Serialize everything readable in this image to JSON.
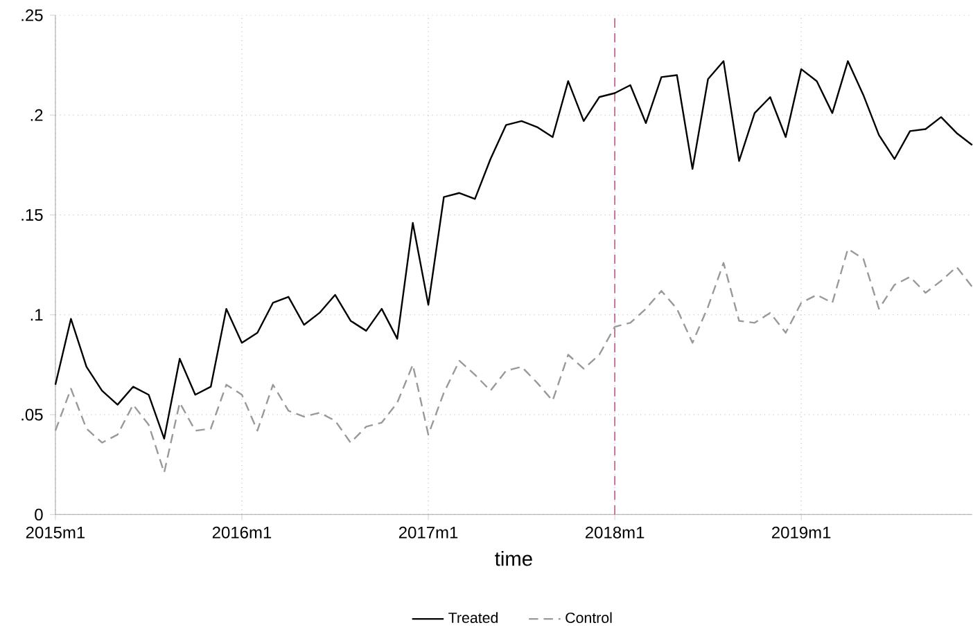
{
  "chart_data": {
    "type": "line",
    "xlabel": "time",
    "x": [
      "2015-01",
      "2015-02",
      "2015-03",
      "2015-04",
      "2015-05",
      "2015-06",
      "2015-07",
      "2015-08",
      "2015-09",
      "2015-10",
      "2015-11",
      "2015-12",
      "2016-01",
      "2016-02",
      "2016-03",
      "2016-04",
      "2016-05",
      "2016-06",
      "2016-07",
      "2016-08",
      "2016-09",
      "2016-10",
      "2016-11",
      "2016-12",
      "2017-01",
      "2017-02",
      "2017-03",
      "2017-04",
      "2017-05",
      "2017-06",
      "2017-07",
      "2017-08",
      "2017-09",
      "2017-10",
      "2017-11",
      "2017-12",
      "2018-01",
      "2018-02",
      "2018-03",
      "2018-04",
      "2018-05",
      "2018-06",
      "2018-07",
      "2018-08",
      "2018-09",
      "2018-10",
      "2018-11",
      "2018-12",
      "2019-01",
      "2019-02",
      "2019-03",
      "2019-04",
      "2019-05",
      "2019-06",
      "2019-07",
      "2019-08",
      "2019-09",
      "2019-10",
      "2019-11",
      "2019-12"
    ],
    "series": [
      {
        "name": "Treated",
        "color": "#000000",
        "line_style": "solid",
        "values": [
          0.065,
          0.098,
          0.074,
          0.062,
          0.055,
          0.064,
          0.06,
          0.038,
          0.078,
          0.06,
          0.064,
          0.103,
          0.086,
          0.091,
          0.106,
          0.109,
          0.095,
          0.101,
          0.11,
          0.097,
          0.092,
          0.103,
          0.088,
          0.146,
          0.105,
          0.159,
          0.161,
          0.158,
          0.178,
          0.195,
          0.197,
          0.194,
          0.189,
          0.217,
          0.197,
          0.209,
          0.211,
          0.215,
          0.196,
          0.219,
          0.22,
          0.173,
          0.218,
          0.227,
          0.177,
          0.201,
          0.209,
          0.189,
          0.223,
          0.217,
          0.201,
          0.227,
          0.21,
          0.19,
          0.178,
          0.192,
          0.193,
          0.199,
          0.191,
          0.185
        ]
      },
      {
        "name": "Control",
        "color": "#999999",
        "line_style": "dashed",
        "values": [
          0.042,
          0.063,
          0.043,
          0.036,
          0.04,
          0.055,
          0.045,
          0.021,
          0.056,
          0.042,
          0.043,
          0.065,
          0.06,
          0.042,
          0.065,
          0.052,
          0.049,
          0.051,
          0.047,
          0.036,
          0.044,
          0.046,
          0.056,
          0.075,
          0.04,
          0.061,
          0.077,
          0.07,
          0.062,
          0.072,
          0.074,
          0.066,
          0.057,
          0.08,
          0.073,
          0.08,
          0.094,
          0.096,
          0.103,
          0.112,
          0.103,
          0.086,
          0.104,
          0.126,
          0.097,
          0.096,
          0.101,
          0.091,
          0.106,
          0.11,
          0.106,
          0.133,
          0.128,
          0.103,
          0.115,
          0.119,
          0.111,
          0.117,
          0.124,
          0.114
        ]
      }
    ],
    "xlim": [
      "2015-01",
      "2019-12"
    ],
    "xticks": [
      {
        "value": "2015-01",
        "label": "2015m1"
      },
      {
        "value": "2016-01",
        "label": "2016m1"
      },
      {
        "value": "2017-01",
        "label": "2017m1"
      },
      {
        "value": "2018-01",
        "label": "2018m1"
      },
      {
        "value": "2019-01",
        "label": "2019m1"
      }
    ],
    "ylim": [
      0,
      0.25
    ],
    "yticks": [
      0,
      {
        "value": 0.05,
        "label": ".05"
      },
      {
        "value": 0.1,
        "label": ".1"
      },
      {
        "value": 0.15,
        "label": ".15"
      },
      {
        "value": 0.2,
        "label": ".2"
      },
      {
        "value": 0.25,
        "label": ".25"
      }
    ],
    "ref_lines": [
      {
        "axis": "x",
        "value": "2018-01",
        "color": "#c8508c",
        "line_style": "dashed"
      }
    ],
    "grid": true,
    "legend": "bottom"
  }
}
